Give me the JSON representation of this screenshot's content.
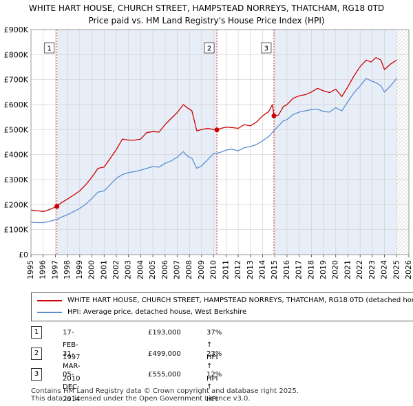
{
  "title_line1": "WHITE HART HOUSE, CHURCH STREET, HAMPSTEAD NORREYS, THATCHAM, RG18 0TD",
  "title_line2": "Price paid vs. HM Land Registry's House Price Index (HPI)",
  "colors": {
    "property": "#cc0000",
    "hpi": "#5b8ed1",
    "band": "#e8eef8",
    "grid": "#d0d0d0",
    "marker_line": "#cc0000"
  },
  "chart_data": {
    "type": "line",
    "xlim": [
      1995,
      2026
    ],
    "ylim": [
      0,
      900000
    ],
    "y_ticks": [
      0,
      100000,
      200000,
      300000,
      400000,
      500000,
      600000,
      700000,
      800000,
      900000
    ],
    "y_tick_labels": [
      "£0",
      "£100K",
      "£200K",
      "£300K",
      "£400K",
      "£500K",
      "£600K",
      "£700K",
      "£800K",
      "£900K"
    ],
    "x_ticks": [
      1995,
      1996,
      1997,
      1998,
      1999,
      2000,
      2001,
      2002,
      2003,
      2004,
      2005,
      2006,
      2007,
      2008,
      2009,
      2010,
      2011,
      2012,
      2013,
      2014,
      2015,
      2016,
      2017,
      2018,
      2019,
      2020,
      2021,
      2022,
      2023,
      2024,
      2025,
      2026
    ],
    "x_tick_labels": [
      "1995",
      "1996",
      "1997",
      "1998",
      "1999",
      "2000",
      "2001",
      "2002",
      "2003",
      "2004",
      "2005",
      "2006",
      "2007",
      "2008",
      "2009",
      "2010",
      "2011",
      "2012",
      "2013",
      "2014",
      "2015",
      "2016",
      "2017",
      "2018",
      "2019",
      "2020",
      "2021",
      "2022",
      "2023",
      "2024",
      "2025",
      "2026"
    ],
    "shaded_ranges": [
      [
        1997.13,
        2010.25
      ],
      [
        2014.93,
        2025.0
      ]
    ],
    "future_start": 2025.0,
    "series": [
      {
        "name": "WHITE HART HOUSE, CHURCH STREET, HAMPSTEAD NORREYS, THATCHAM, RG18 0TD (detached house)",
        "color": "#cc0000",
        "x": [
          1995.0,
          1995.5,
          1996.0,
          1996.5,
          1997.13,
          1997.5,
          1998.0,
          1998.5,
          1999.0,
          1999.5,
          2000.0,
          2000.5,
          2001.0,
          2001.5,
          2002.0,
          2002.5,
          2003.0,
          2003.5,
          2004.0,
          2004.5,
          2005.0,
          2005.5,
          2006.0,
          2006.5,
          2007.0,
          2007.5,
          2007.8,
          2008.2,
          2008.6,
          2009.0,
          2009.5,
          2010.0,
          2010.25,
          2010.6,
          2011.0,
          2011.5,
          2012.0,
          2012.5,
          2013.0,
          2013.5,
          2014.0,
          2014.5,
          2014.8,
          2014.93,
          2015.3,
          2015.7,
          2016.0,
          2016.5,
          2017.0,
          2017.5,
          2018.0,
          2018.5,
          2019.0,
          2019.5,
          2020.0,
          2020.5,
          2021.0,
          2021.5,
          2022.0,
          2022.5,
          2022.9,
          2023.3,
          2023.7,
          2024.0,
          2024.5,
          2025.0
        ],
        "values": [
          178000,
          176000,
          172000,
          180000,
          193000,
          208000,
          222000,
          238000,
          255000,
          280000,
          310000,
          345000,
          350000,
          385000,
          420000,
          462000,
          458000,
          458000,
          462000,
          488000,
          492000,
          490000,
          520000,
          545000,
          568000,
          600000,
          588000,
          575000,
          495000,
          500000,
          505000,
          500000,
          499000,
          505000,
          510000,
          508000,
          505000,
          520000,
          515000,
          530000,
          555000,
          572000,
          600000,
          555000,
          558000,
          592000,
          600000,
          625000,
          635000,
          640000,
          650000,
          665000,
          655000,
          648000,
          662000,
          632000,
          672000,
          715000,
          752000,
          778000,
          770000,
          788000,
          778000,
          740000,
          762000,
          778000
        ]
      },
      {
        "name": "HPI: Average price, detached house, West Berkshire",
        "color": "#5b8ed1",
        "x": [
          1995.0,
          1995.5,
          1996.0,
          1996.5,
          1997.13,
          1997.5,
          1998.0,
          1998.5,
          1999.0,
          1999.5,
          2000.0,
          2000.5,
          2001.0,
          2001.5,
          2002.0,
          2002.5,
          2003.0,
          2003.5,
          2004.0,
          2004.5,
          2005.0,
          2005.5,
          2006.0,
          2006.5,
          2007.0,
          2007.5,
          2007.8,
          2008.2,
          2008.6,
          2009.0,
          2009.5,
          2010.0,
          2010.25,
          2010.6,
          2011.0,
          2011.5,
          2012.0,
          2012.5,
          2013.0,
          2013.5,
          2014.0,
          2014.5,
          2014.8,
          2014.93,
          2015.3,
          2015.7,
          2016.0,
          2016.5,
          2017.0,
          2017.5,
          2018.0,
          2018.5,
          2019.0,
          2019.5,
          2020.0,
          2020.5,
          2021.0,
          2021.5,
          2022.0,
          2022.5,
          2022.9,
          2023.3,
          2023.7,
          2024.0,
          2024.5,
          2025.0
        ],
        "values": [
          130000,
          128000,
          128000,
          133000,
          141000,
          150000,
          160000,
          172000,
          185000,
          202000,
          225000,
          250000,
          255000,
          280000,
          305000,
          320000,
          328000,
          332000,
          338000,
          345000,
          352000,
          350000,
          365000,
          375000,
          390000,
          412000,
          395000,
          385000,
          345000,
          355000,
          380000,
          405000,
          406000,
          410000,
          418000,
          422000,
          415000,
          428000,
          432000,
          440000,
          455000,
          472000,
          488000,
          496000,
          515000,
          535000,
          540000,
          560000,
          570000,
          575000,
          580000,
          582000,
          572000,
          570000,
          588000,
          575000,
          612000,
          648000,
          675000,
          705000,
          695000,
          688000,
          675000,
          650000,
          675000,
          705000
        ]
      }
    ],
    "sales": [
      {
        "label": "1",
        "x": 1997.13,
        "value": 193000
      },
      {
        "label": "2",
        "x": 2010.25,
        "value": 499000
      },
      {
        "label": "3",
        "x": 2014.93,
        "value": 555000
      }
    ]
  },
  "legend": [
    {
      "label": "WHITE HART HOUSE, CHURCH STREET, HAMPSTEAD NORREYS, THATCHAM, RG18 0TD (detached house)",
      "color": "#cc0000"
    },
    {
      "label": "HPI: Average price, detached house, West Berkshire",
      "color": "#5b8ed1"
    }
  ],
  "transactions": [
    {
      "num": "1",
      "date": "17-FEB-1997",
      "price": "£193,000",
      "hpi": "37% ↑ HPI"
    },
    {
      "num": "2",
      "date": "31-MAR-2010",
      "price": "£499,000",
      "hpi": "23% ↑ HPI"
    },
    {
      "num": "3",
      "date": "05-DEC-2014",
      "price": "£555,000",
      "hpi": "12% ↑ HPI"
    }
  ],
  "footer_line1": "Contains HM Land Registry data © Crown copyright and database right 2025.",
  "footer_line2": "This data is licensed under the Open Government Licence v3.0."
}
